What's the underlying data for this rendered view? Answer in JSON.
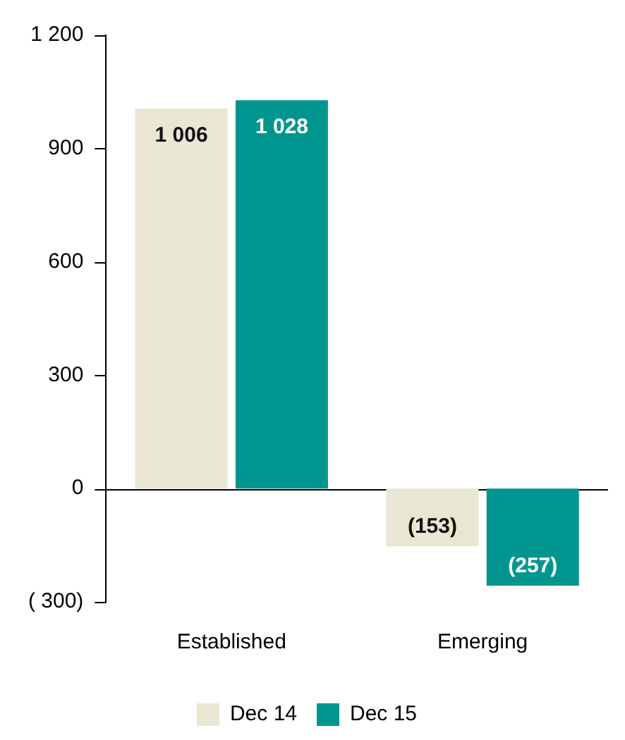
{
  "chart_data": {
    "type": "bar",
    "categories": [
      "Established",
      "Emerging"
    ],
    "series": [
      {
        "name": "Dec 14",
        "color": "#e9e7d3",
        "values": [
          1006,
          -153
        ],
        "value_labels": [
          "1 006",
          "(153)"
        ]
      },
      {
        "name": "Dec 15",
        "color": "#00968f",
        "values": [
          1028,
          -257
        ],
        "value_labels": [
          "1 028",
          "(257)"
        ]
      }
    ],
    "ylim": [
      -300,
      1200
    ],
    "yticks": [
      {
        "value": -300,
        "label": "( 300)"
      },
      0,
      300,
      600,
      900,
      {
        "value": 1200,
        "label": "1 200"
      }
    ],
    "ref_lines": [
      {
        "axis": "y",
        "value": 0,
        "color": "#000000",
        "line_style": "solid"
      }
    ],
    "grid": false,
    "legend": "bottom"
  }
}
